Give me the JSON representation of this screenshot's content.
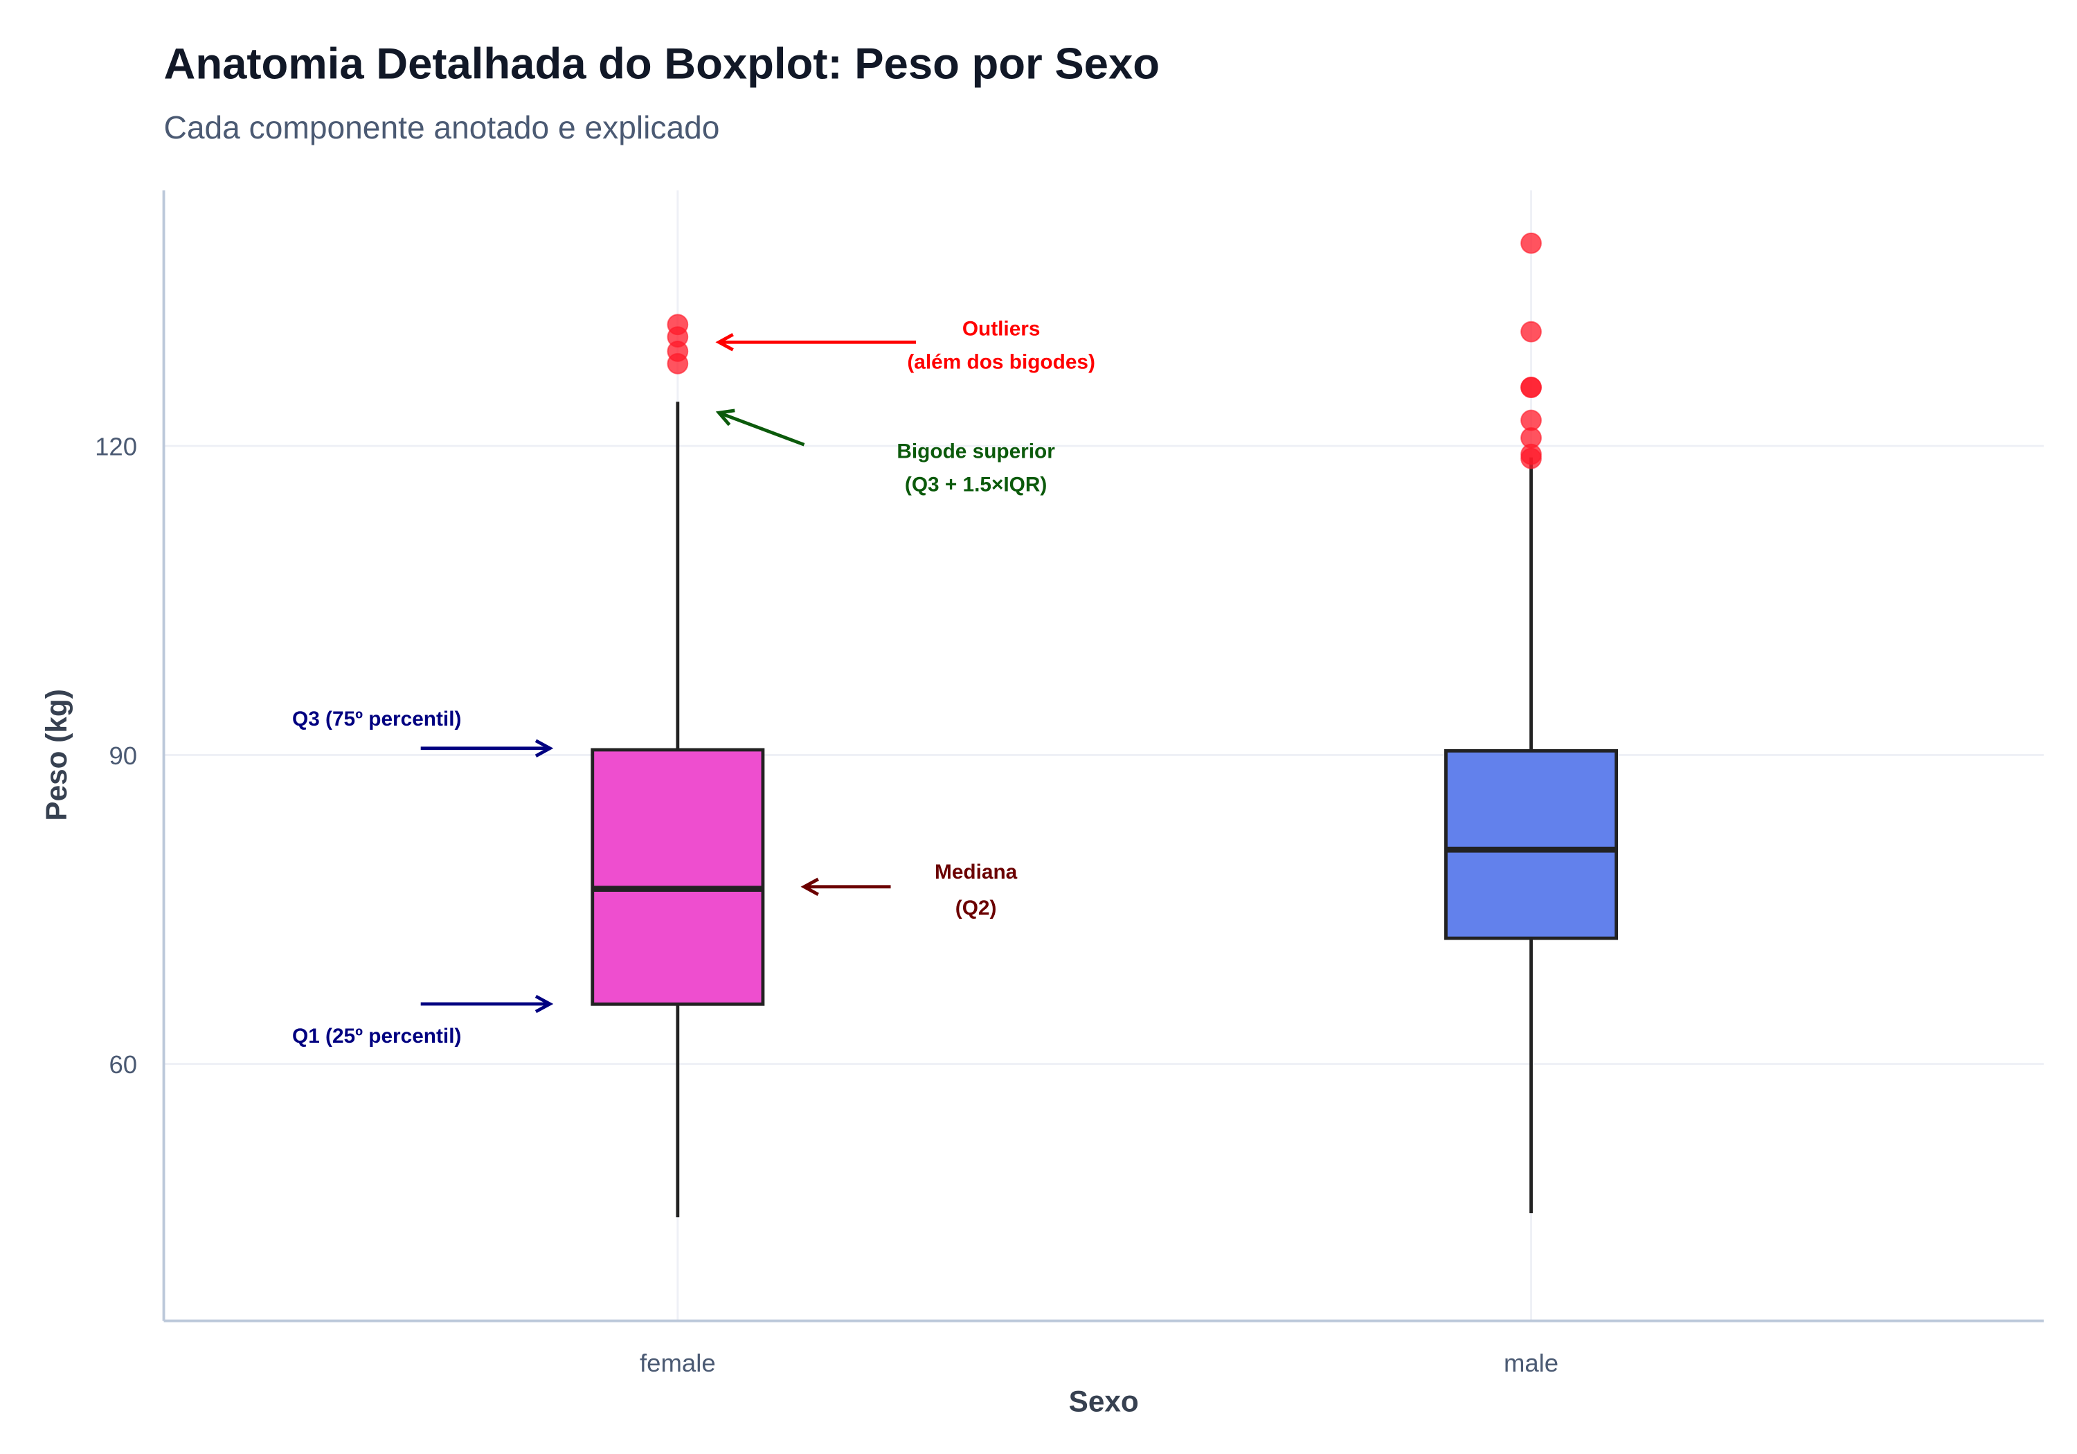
{
  "chart_data": {
    "type": "box",
    "title": "Anatomia Detalhada do Boxplot: Peso por Sexo",
    "subtitle": "Cada componente anotado e explicado",
    "xlabel": "Sexo",
    "ylabel": "Peso (kg)",
    "ylim": [
      35,
      145
    ],
    "yticks": [
      60,
      90,
      120
    ],
    "ytick_labels": [
      "60",
      "90",
      "120"
    ],
    "grid": true,
    "categories": [
      "female",
      "male"
    ],
    "boxes": [
      {
        "name": "female",
        "color": "#EE4ECF",
        "whisker_low": 45.1,
        "q1": 65.8,
        "median": 77.0,
        "q3": 90.5,
        "whisker_high": 124.3,
        "outliers": [
          128.0,
          129.2,
          130.6,
          131.8
        ]
      },
      {
        "name": "male",
        "color": "#6281EC",
        "whisker_low": 45.5,
        "q1": 72.2,
        "median": 80.8,
        "q3": 90.4,
        "whisker_high": 118.9,
        "outliers": [
          118.8,
          119.2,
          120.8,
          122.5,
          125.7,
          125.7,
          131.1,
          139.7
        ]
      }
    ],
    "outlier_color": "#FF1A2A",
    "annotations": [
      {
        "id": "q3",
        "lines": [
          "Q3 (75º percentil)"
        ],
        "color": "#000080"
      },
      {
        "id": "q1",
        "lines": [
          "Q1 (25º percentil)"
        ],
        "color": "#000080"
      },
      {
        "id": "median",
        "lines": [
          "Mediana",
          "(Q2)"
        ],
        "color": "#6B0000"
      },
      {
        "id": "outliers",
        "lines": [
          "Outliers",
          "(além dos bigodes)"
        ],
        "color": "#FF0000"
      },
      {
        "id": "whisker",
        "lines": [
          "Bigode superior",
          "(Q3 + 1.5×IQR)"
        ],
        "color": "#0B5A0B"
      }
    ]
  }
}
